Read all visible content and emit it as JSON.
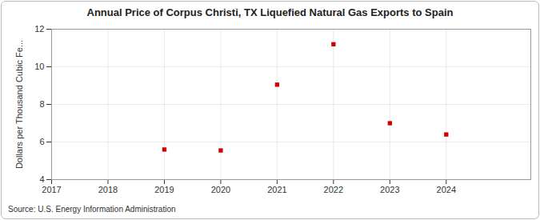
{
  "chart_data": {
    "type": "scatter",
    "title": "Annual Price of Corpus Christi, TX Liquefied Natural Gas Exports to Spain",
    "y_label": "Dollars per Thousand Cubic Fe...",
    "source": "Source: U.S. Energy Information Administration",
    "x": [
      2019,
      2020,
      2021,
      2022,
      2023,
      2024
    ],
    "values": [
      5.6,
      5.55,
      9.05,
      11.2,
      7.0,
      6.4
    ],
    "color": "#cc0000",
    "marker": "square",
    "xlim": [
      2017,
      2025.5
    ],
    "xticks": [
      2017,
      2018,
      2019,
      2020,
      2021,
      2022,
      2023,
      2024
    ],
    "ylim": [
      4,
      12
    ],
    "yticks": [
      4,
      6,
      8,
      10,
      12
    ],
    "grid": true
  }
}
